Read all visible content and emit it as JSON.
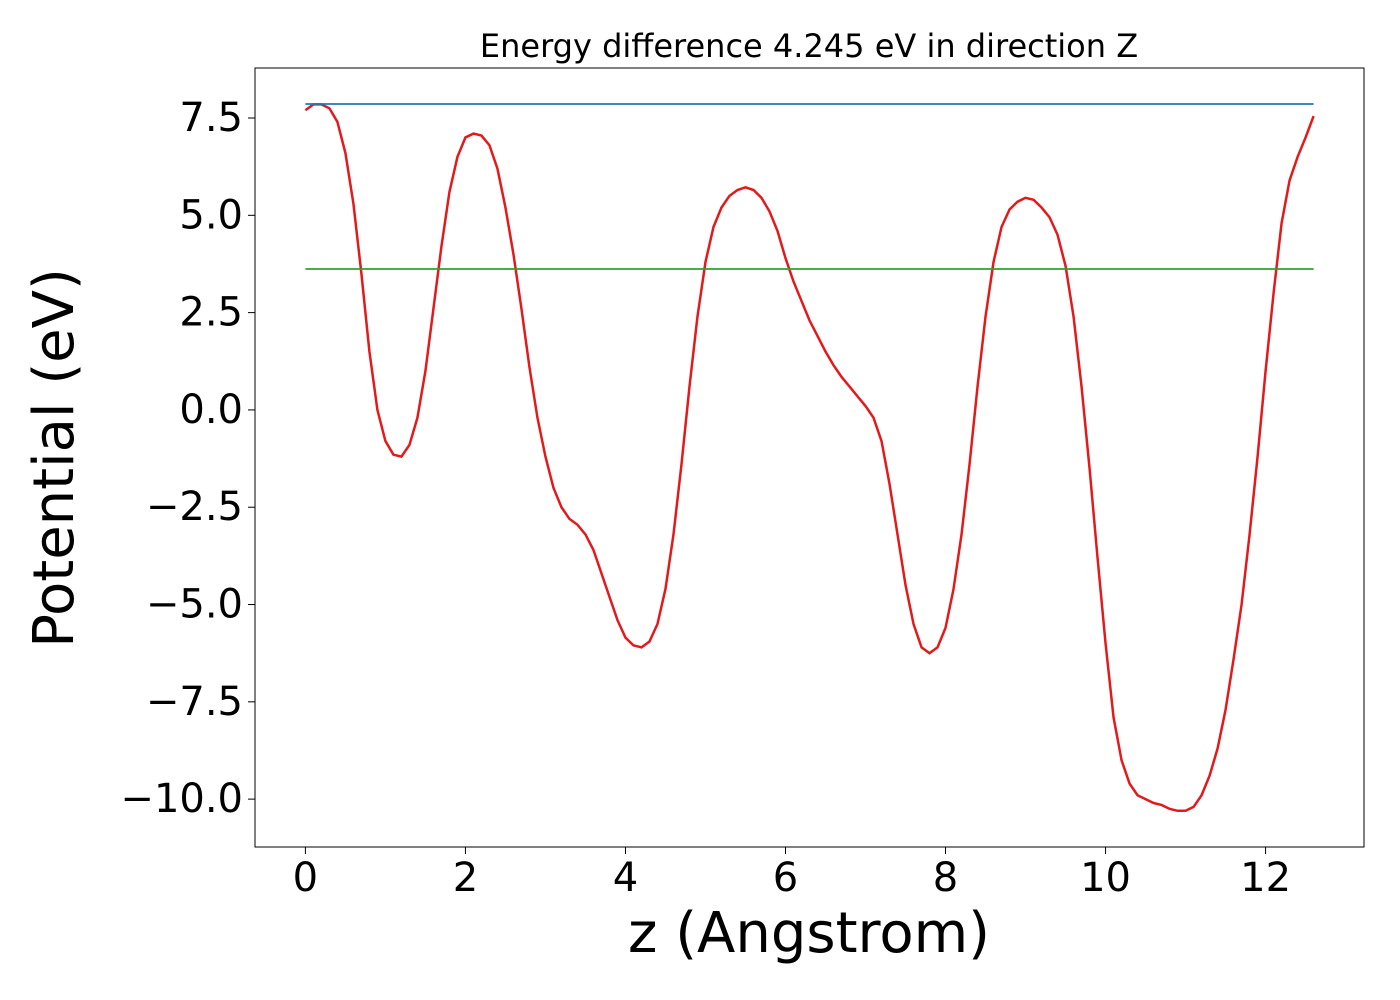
{
  "chart_data": {
    "type": "line",
    "title": "Energy difference 4.245 eV in direction Z",
    "x_label": "z (Angstrom)",
    "y_label": "Potential (eV)",
    "xlim": [
      -0.63,
      13.23
    ],
    "ylim": [
      -11.23,
      8.785
    ],
    "xticks": [
      0,
      2,
      4,
      6,
      8,
      10,
      12
    ],
    "yticks": [
      {
        "value": -10,
        "label": "−10.0"
      },
      {
        "value": -7.5,
        "label": "−7.5"
      },
      {
        "value": -5,
        "label": "−5.0"
      },
      {
        "value": -2.5,
        "label": "−2.5"
      },
      {
        "value": 0,
        "label": "0.0"
      },
      2.5,
      {
        "value": 5,
        "label": "5.0"
      },
      7.5
    ],
    "grid": false,
    "series": [
      {
        "color": "#e31a1c",
        "x": [
          0,
          0.1,
          0.2,
          0.3,
          0.4,
          0.5,
          0.6,
          0.7,
          0.8,
          0.9,
          1.0,
          1.1,
          1.2,
          1.3,
          1.4,
          1.5,
          1.6,
          1.7,
          1.8,
          1.9,
          2.0,
          2.1,
          2.2,
          2.3,
          2.4,
          2.5,
          2.6,
          2.7,
          2.8,
          2.9,
          3.0,
          3.1,
          3.2,
          3.3,
          3.4,
          3.5,
          3.6,
          3.7,
          3.8,
          3.9,
          4.0,
          4.1,
          4.2,
          4.3,
          4.4,
          4.5,
          4.6,
          4.7,
          4.8,
          4.9,
          5.0,
          5.1,
          5.2,
          5.3,
          5.4,
          5.5,
          5.6,
          5.7,
          5.8,
          5.9,
          6.0,
          6.1,
          6.2,
          6.3,
          6.4,
          6.5,
          6.6,
          6.7,
          6.8,
          6.9,
          7.0,
          7.1,
          7.2,
          7.3,
          7.4,
          7.5,
          7.6,
          7.7,
          7.8,
          7.9,
          8.0,
          8.1,
          8.2,
          8.3,
          8.4,
          8.5,
          8.6,
          8.7,
          8.8,
          8.9,
          9.0,
          9.1,
          9.2,
          9.3,
          9.4,
          9.5,
          9.6,
          9.7,
          9.8,
          9.9,
          10.0,
          10.1,
          10.2,
          10.3,
          10.4,
          10.5,
          10.6,
          10.7,
          10.8,
          10.9,
          11.0,
          11.1,
          11.2,
          11.3,
          11.4,
          11.5,
          11.6,
          11.7,
          11.8,
          11.9,
          12.0,
          12.1,
          12.2,
          12.3,
          12.4,
          12.5,
          12.6
        ],
        "values": [
          7.7,
          7.85,
          7.85,
          7.75,
          7.4,
          6.6,
          5.3,
          3.5,
          1.5,
          0,
          -0.8,
          -1.15,
          -1.2,
          -0.9,
          -0.2,
          1.0,
          2.6,
          4.2,
          5.6,
          6.5,
          7.0,
          7.1,
          7.05,
          6.8,
          6.2,
          5.2,
          4.0,
          2.6,
          1.1,
          -0.2,
          -1.2,
          -2.0,
          -2.5,
          -2.8,
          -2.95,
          -3.2,
          -3.6,
          -4.2,
          -4.8,
          -5.4,
          -5.85,
          -6.05,
          -6.1,
          -5.95,
          -5.5,
          -4.6,
          -3.2,
          -1.4,
          0.6,
          2.4,
          3.8,
          4.7,
          5.2,
          5.5,
          5.65,
          5.72,
          5.65,
          5.45,
          5.1,
          4.6,
          3.9,
          3.3,
          2.8,
          2.3,
          1.9,
          1.5,
          1.15,
          0.85,
          0.6,
          0.35,
          0.1,
          -0.2,
          -0.8,
          -1.9,
          -3.2,
          -4.5,
          -5.5,
          -6.1,
          -6.25,
          -6.1,
          -5.6,
          -4.6,
          -3.2,
          -1.4,
          0.6,
          2.4,
          3.8,
          4.7,
          5.15,
          5.35,
          5.45,
          5.4,
          5.2,
          4.95,
          4.5,
          3.7,
          2.4,
          0.6,
          -1.5,
          -3.8,
          -6.0,
          -7.9,
          -9.0,
          -9.6,
          -9.9,
          -10.0,
          -10.1,
          -10.15,
          -10.25,
          -10.3,
          -10.3,
          -10.2,
          -9.9,
          -9.4,
          -8.7,
          -7.7,
          -6.4,
          -5.0,
          -3.2,
          -1.2,
          1.0,
          3.0,
          4.8,
          5.9,
          6.5,
          7.0,
          7.55
        ]
      },
      {
        "color": "#1f78b4",
        "x": [
          0,
          12.6
        ],
        "values": [
          7.86,
          7.86
        ]
      },
      {
        "color": "#33a02c",
        "x": [
          0,
          12.6
        ],
        "values": [
          3.62,
          3.62
        ]
      }
    ]
  }
}
